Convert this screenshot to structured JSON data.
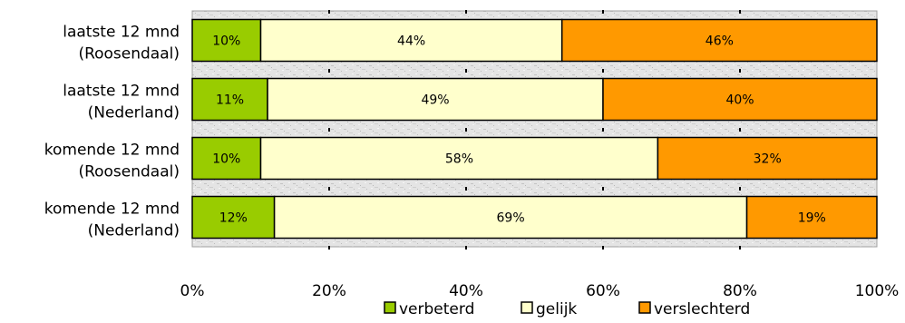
{
  "chart_data": {
    "type": "bar",
    "orientation": "horizontal",
    "stacked": true,
    "percent": true,
    "categories": [
      [
        "laatste 12 mnd",
        "(Roosendaal)"
      ],
      [
        "laatste 12 mnd",
        "(Nederland)"
      ],
      [
        "komende 12 mnd",
        "(Roosendaal)"
      ],
      [
        "komende 12 mnd",
        "(Nederland)"
      ]
    ],
    "series": [
      {
        "name": "verbeterd",
        "color": "#99cc00",
        "values": [
          10,
          11,
          10,
          12
        ],
        "labels": [
          "10%",
          "11%",
          "10%",
          "12%"
        ]
      },
      {
        "name": "gelijk",
        "color": "#ffffcc",
        "values": [
          44,
          49,
          58,
          69
        ],
        "labels": [
          "44%",
          "49%",
          "58%",
          "69%"
        ]
      },
      {
        "name": "verslechterd",
        "color": "#ff9900",
        "values": [
          46,
          40,
          32,
          19
        ],
        "labels": [
          "46%",
          "40%",
          "32%",
          "19%"
        ]
      }
    ],
    "xlim": [
      0,
      100
    ],
    "xticks": [
      0,
      20,
      40,
      60,
      80,
      100
    ],
    "xtick_labels": [
      "0%",
      "20%",
      "40%",
      "60%",
      "80%",
      "100%"
    ],
    "legend": "bottom",
    "grid": false,
    "plot_background": "gray-texture"
  }
}
